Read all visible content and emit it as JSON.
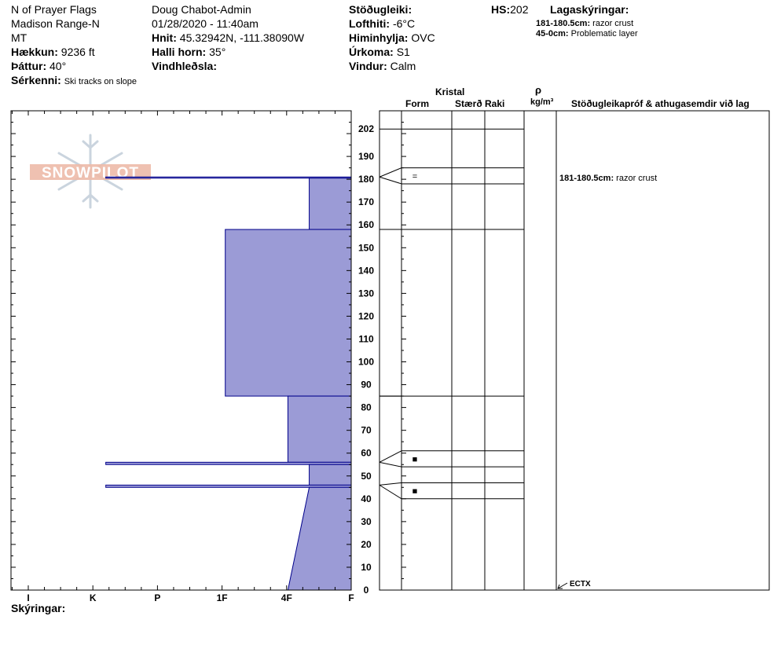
{
  "header": {
    "location_name": "N of Prayer Flags",
    "range": "Madison Range-N",
    "state": "MT",
    "elevation_label": "Hækkun:",
    "elevation_value": "9236 ft",
    "aspect_label": "Þáttur:",
    "aspect_value": "40°",
    "features_label": "Sérkenni:",
    "features_value": "Ski tracks on slope",
    "observer": "Doug Chabot-Admin",
    "datetime": "01/28/2020 - 11:40am",
    "coords_label": "Hnit:",
    "coords_value": "45.32942N, -111.38090W",
    "slope_label": "Halli horn:",
    "slope_value": "35°",
    "wind_loading_label": "Vindhleðsla:",
    "stability_label": "Stöðugleiki:",
    "air_temp_label": "Lofthiti:",
    "air_temp_value": "-6°C",
    "sky_label": "Himinhylja:",
    "sky_value": "OVC",
    "precip_label": "Úrkoma:",
    "precip_value": "S1",
    "wind_label": "Vindur:",
    "wind_value": "Calm",
    "hs_label": "HS:",
    "hs_value": "202",
    "layer_notes_label": "Lagaskýringar:",
    "layer_notes": [
      {
        "range": "181-180.5cm:",
        "text": "razor crust"
      },
      {
        "range": "45-0cm:",
        "text": "Problematic layer"
      }
    ]
  },
  "columns": {
    "crystal": "Kristal",
    "form": "Form",
    "size": "Stærð",
    "moisture": "Raki",
    "rho": "ρ",
    "density_unit": "kg/m³",
    "comments": "Stöðugleikapróf & athugasemdir við lag"
  },
  "legend_label": "Skýringar:",
  "colors": {
    "layer_fill": "#9b9bd6",
    "layer_stroke": "#00008b",
    "logo": "#e8a48c"
  },
  "chart_data": {
    "type": "snow-profile",
    "y_range_cm": [
      0,
      202
    ],
    "y_ticks": [
      0,
      10,
      20,
      30,
      40,
      50,
      60,
      70,
      80,
      90,
      100,
      110,
      120,
      130,
      140,
      150,
      160,
      170,
      180,
      190,
      202
    ],
    "hardness_categories": [
      "I",
      "K",
      "P",
      "1F",
      "4F",
      "F"
    ],
    "hardness_ticks": [
      {
        "label": "I",
        "value": 6
      },
      {
        "label": "K",
        "value": 5
      },
      {
        "label": "P",
        "value": 4
      },
      {
        "label": "1F",
        "value": 3
      },
      {
        "label": "4F",
        "value": 2
      },
      {
        "label": "F",
        "value": 1
      }
    ],
    "layers": [
      {
        "top": 202,
        "bottom": 181,
        "hardness": 1
      },
      {
        "top": 181,
        "bottom": 180.5,
        "hardness": 4.8
      },
      {
        "top": 180.5,
        "bottom": 158,
        "hardness": 1.65
      },
      {
        "top": 158,
        "bottom": 85,
        "hardness": 2.95
      },
      {
        "top": 85,
        "bottom": 56,
        "hardness": 1.98
      },
      {
        "top": 56,
        "bottom": 55,
        "hardness": 4.8
      },
      {
        "top": 55,
        "bottom": 46,
        "hardness": 1.65
      },
      {
        "top": 46,
        "bottom": 45,
        "hardness": 4.8
      },
      {
        "top": 45,
        "bottom": 0,
        "hardness_top": 1.65,
        "hardness_bottom": 1.98
      }
    ],
    "layer_table_rows": [
      {
        "boundary_cm": 181,
        "row_top_cm": 185,
        "row_bottom_cm": 178,
        "form_symbol": "="
      },
      {
        "boundary_cm": 158,
        "row_top_cm": 158,
        "row_bottom_cm": 158,
        "form_symbol": ""
      },
      {
        "boundary_cm": 85,
        "row_top_cm": 85,
        "row_bottom_cm": 85,
        "form_symbol": ""
      },
      {
        "boundary_cm": 56,
        "row_top_cm": 61,
        "row_bottom_cm": 54,
        "form_symbol": "■"
      },
      {
        "boundary_cm": 46,
        "row_top_cm": 47,
        "row_bottom_cm": 40,
        "form_symbol": "■"
      }
    ],
    "top_line_cm": 202,
    "comments": [
      {
        "at_cm": 181,
        "label": "181-180.5cm:",
        "text": "razor crust"
      }
    ],
    "tests": [
      {
        "at_cm": 0,
        "text": "ECTX"
      }
    ]
  },
  "logo_text": "SNOWPILOT"
}
